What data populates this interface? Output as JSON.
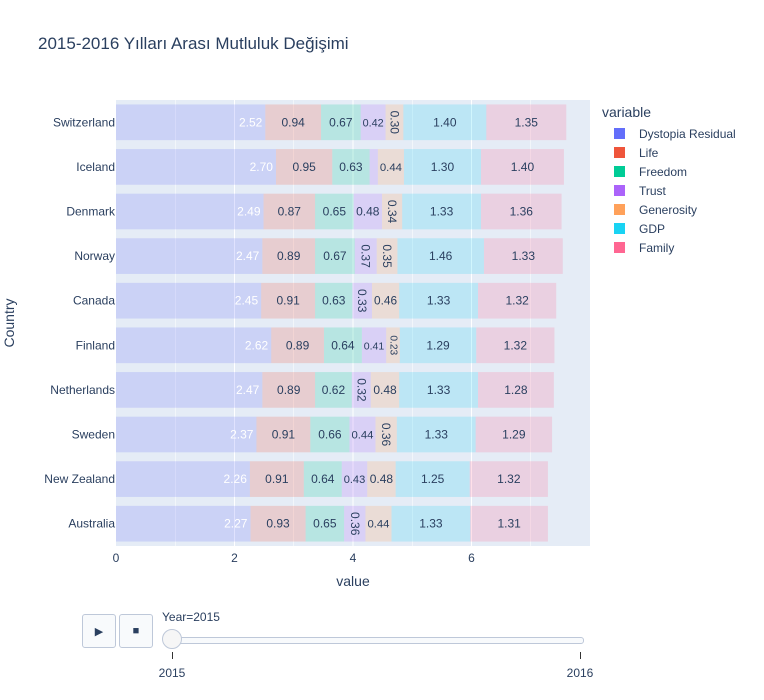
{
  "chart_data": {
    "type": "bar",
    "orientation": "horizontal",
    "barmode": "stack",
    "title": "2015-2016 Yılları Arası Mutluluk Değişimi",
    "xlabel": "value",
    "ylabel": "Country",
    "xlim": [
      0,
      8
    ],
    "xticks": [
      "0",
      "2",
      "4",
      "6"
    ],
    "xtick_values": [
      0,
      2,
      4,
      6
    ],
    "grid": true,
    "legend_title": "variable",
    "legend_placement": "right",
    "categories": [
      "Switzerland",
      "Iceland",
      "Denmark",
      "Norway",
      "Canada",
      "Finland",
      "Netherlands",
      "Sweden",
      "New Zealand",
      "Australia"
    ],
    "series": [
      {
        "name": "Dystopia Residual",
        "color": "#636efa",
        "text_color": "#ffffff",
        "values": [
          2.52,
          2.7,
          2.49,
          2.47,
          2.45,
          2.62,
          2.47,
          2.37,
          2.26,
          2.27
        ],
        "labels": [
          "2.52",
          "2.70",
          "2.49",
          "2.47",
          "2.45",
          "2.62",
          "2.47",
          "2.37",
          "2.26",
          "2.27"
        ]
      },
      {
        "name": "Life",
        "color": "#EF553B",
        "text_color": "#2a3f5f",
        "values": [
          0.94,
          0.95,
          0.87,
          0.89,
          0.91,
          0.89,
          0.89,
          0.91,
          0.91,
          0.93
        ],
        "labels": [
          "0.94",
          "0.95",
          "0.87",
          "0.89",
          "0.91",
          "0.89",
          "0.89",
          "0.91",
          "0.91",
          "0.93"
        ]
      },
      {
        "name": "Freedom",
        "color": "#00cc96",
        "text_color": "#2a3f5f",
        "values": [
          0.67,
          0.63,
          0.65,
          0.67,
          0.63,
          0.64,
          0.62,
          0.66,
          0.64,
          0.65
        ],
        "labels": [
          "0.67",
          "0.63",
          "0.65",
          "0.67",
          "0.63",
          "0.64",
          "0.62",
          "0.66",
          "0.64",
          "0.65"
        ]
      },
      {
        "name": "Trust",
        "color": "#ab63fa",
        "text_color": "#2a3f5f",
        "values": [
          0.42,
          0.14,
          0.48,
          0.37,
          0.33,
          0.41,
          0.32,
          0.44,
          0.43,
          0.36
        ],
        "labels": [
          "0.42",
          "",
          "0.48",
          "0.37",
          "0.33",
          "0.41",
          "0.32",
          "0.44",
          "0.43",
          "0.36"
        ]
      },
      {
        "name": "Generosity",
        "color": "#FFA15A",
        "text_color": "#2a3f5f",
        "values": [
          0.3,
          0.44,
          0.34,
          0.35,
          0.46,
          0.23,
          0.48,
          0.36,
          0.48,
          0.44
        ],
        "labels": [
          "0.30",
          "0.44",
          "0.34",
          "0.35",
          "0.46",
          "0.23",
          "0.48",
          "0.36",
          "0.48",
          "0.44"
        ]
      },
      {
        "name": "GDP",
        "color": "#19d3f3",
        "text_color": "#2a3f5f",
        "values": [
          1.4,
          1.3,
          1.33,
          1.46,
          1.33,
          1.29,
          1.33,
          1.33,
          1.25,
          1.33
        ],
        "labels": [
          "1.40",
          "1.30",
          "1.33",
          "1.46",
          "1.33",
          "1.29",
          "1.33",
          "1.33",
          "1.25",
          "1.33"
        ]
      },
      {
        "name": "Family",
        "color": "#FF6692",
        "text_color": "#2a3f5f",
        "values": [
          1.35,
          1.4,
          1.36,
          1.33,
          1.32,
          1.32,
          1.28,
          1.29,
          1.32,
          1.31
        ],
        "labels": [
          "1.35",
          "1.40",
          "1.36",
          "1.33",
          "1.32",
          "1.32",
          "1.28",
          "1.29",
          "1.32",
          "1.31"
        ]
      }
    ]
  },
  "controls": {
    "play_icon": "▶",
    "stop_icon": "■",
    "slider_label": "Year=2015",
    "slider_ticks": [
      "2015",
      "2016"
    ],
    "slider_value": "2015"
  }
}
